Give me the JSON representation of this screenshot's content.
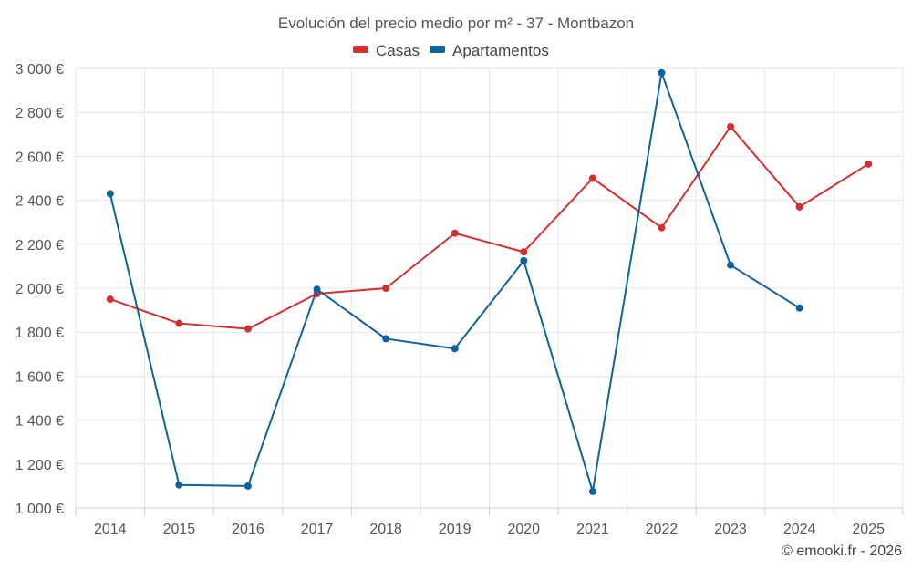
{
  "chart_data": {
    "type": "line",
    "title": "Evolución del precio medio por m² - 37 - Montbazon",
    "categories": [
      "2014",
      "2015",
      "2016",
      "2017",
      "2018",
      "2019",
      "2020",
      "2021",
      "2022",
      "2023",
      "2024",
      "2025"
    ],
    "series": [
      {
        "name": "Casas",
        "color": "#d32f2f",
        "values": [
          1950,
          1840,
          1815,
          1975,
          2000,
          2250,
          2165,
          2500,
          2275,
          2735,
          2370,
          2565
        ]
      },
      {
        "name": "Apartamentos",
        "color": "#0d62a0",
        "values": [
          2430,
          1105,
          1100,
          1995,
          1770,
          1725,
          2125,
          1075,
          2980,
          2105,
          1910,
          null
        ]
      }
    ],
    "yticks": [
      "1 000 €",
      "1 200 €",
      "1 400 €",
      "1 600 €",
      "1 800 €",
      "2 000 €",
      "2 200 €",
      "2 400 €",
      "2 600 €",
      "2 800 €",
      "3 000 €"
    ],
    "ytick_values": [
      1000,
      1200,
      1400,
      1600,
      1800,
      2000,
      2200,
      2400,
      2600,
      2800,
      3000
    ],
    "ylim": [
      1000,
      3000
    ],
    "legend": "top-center",
    "credit": "© emooki.fr - 2026"
  }
}
